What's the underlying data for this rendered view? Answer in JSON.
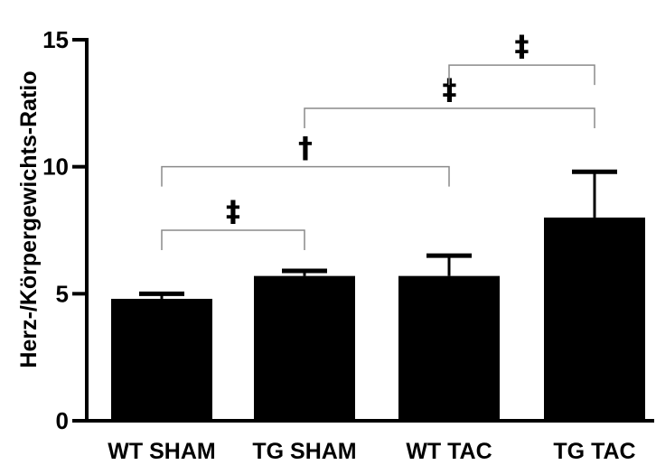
{
  "chart_data": {
    "type": "bar",
    "ylabel": "Herz-/Körpergewichts-Ratio",
    "xlabel": "",
    "ylim": [
      0,
      15
    ],
    "yticks": [
      0,
      5,
      10,
      15
    ],
    "categories": [
      "WT SHAM",
      "TG SHAM",
      "WT TAC",
      "TG TAC"
    ],
    "values": [
      4.8,
      5.7,
      5.7,
      8.0
    ],
    "error_upper": [
      5.0,
      5.9,
      6.5,
      9.8
    ],
    "bar_color": "#000000",
    "significance": [
      {
        "from": 0,
        "to": 1,
        "y": 7.5,
        "label": "‡"
      },
      {
        "from": 0,
        "to": 2,
        "y": 10.0,
        "label": "†"
      },
      {
        "from": 1,
        "to": 3,
        "y": 12.3,
        "label": "‡"
      },
      {
        "from": 2,
        "to": 3,
        "y": 14.0,
        "label": "‡"
      }
    ]
  }
}
